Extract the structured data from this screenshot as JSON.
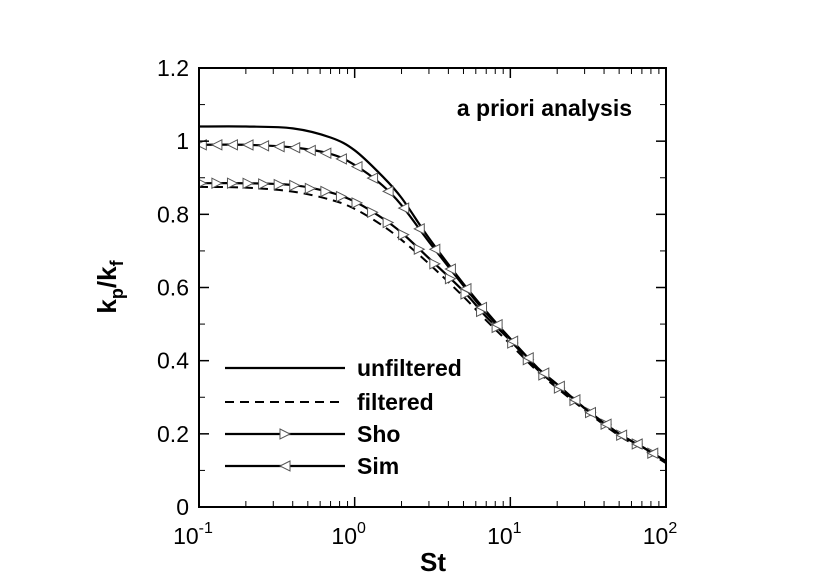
{
  "chart_data": {
    "type": "line",
    "xscale": "log",
    "xlim": [
      0.1,
      100
    ],
    "ylim": [
      0,
      1.2
    ],
    "xlabel": "St",
    "ylabel": {
      "main": "k",
      "sub1": "p",
      "sep": "/",
      "main2": "k",
      "sub2": "f"
    },
    "annotation": "a priori analysis",
    "legend_position": "bottom-left",
    "grid": false,
    "yticks": [
      {
        "value": 0,
        "label": "0"
      },
      {
        "value": 0.2,
        "label": "0.2"
      },
      {
        "value": 0.4,
        "label": "0.4"
      },
      {
        "value": 0.6,
        "label": "0.6"
      },
      {
        "value": 0.8,
        "label": "0.8"
      },
      {
        "value": 1,
        "label": "1"
      },
      {
        "value": 1.2,
        "label": "1.2"
      }
    ],
    "xticks": [
      {
        "value": 0.1,
        "base": "10",
        "exp": "-1"
      },
      {
        "value": 1,
        "base": "10",
        "exp": "0"
      },
      {
        "value": 10,
        "base": "10",
        "exp": "1"
      },
      {
        "value": 100,
        "base": "10",
        "exp": "2"
      }
    ],
    "series": [
      {
        "name": "unfiltered",
        "style": "solid",
        "marker": "none",
        "x": [
          0.1,
          0.2,
          0.4,
          0.7,
          1,
          1.5,
          2,
          3,
          5,
          7,
          10,
          15,
          20,
          30,
          50,
          70,
          100
        ],
        "y": [
          1.04,
          1.04,
          1.035,
          1.01,
          0.975,
          0.905,
          0.845,
          0.735,
          0.61,
          0.535,
          0.46,
          0.38,
          0.335,
          0.27,
          0.2,
          0.165,
          0.125
        ]
      },
      {
        "name": "filtered",
        "style": "dashed",
        "marker": "none",
        "x": [
          0.1,
          0.2,
          0.4,
          0.7,
          1,
          1.5,
          2,
          3,
          5,
          7,
          10,
          15,
          20,
          30,
          50,
          70,
          100
        ],
        "y": [
          0.875,
          0.873,
          0.862,
          0.84,
          0.815,
          0.77,
          0.73,
          0.665,
          0.575,
          0.51,
          0.445,
          0.37,
          0.325,
          0.265,
          0.195,
          0.16,
          0.12
        ]
      },
      {
        "name": "Sho",
        "style": "solid",
        "marker": "triangle-right",
        "x": [
          0.1,
          0.2,
          0.4,
          0.7,
          1,
          1.5,
          2,
          3,
          5,
          7,
          10,
          15,
          20,
          30,
          50,
          70,
          100
        ],
        "y": [
          0.885,
          0.885,
          0.88,
          0.86,
          0.835,
          0.79,
          0.75,
          0.68,
          0.59,
          0.52,
          0.455,
          0.375,
          0.33,
          0.27,
          0.2,
          0.165,
          0.125
        ]
      },
      {
        "name": "Sim",
        "style": "solid",
        "marker": "triangle-left",
        "x": [
          0.1,
          0.2,
          0.4,
          0.7,
          1,
          1.5,
          2,
          3,
          5,
          7,
          10,
          15,
          20,
          30,
          50,
          70,
          100
        ],
        "y": [
          0.99,
          0.99,
          0.983,
          0.965,
          0.935,
          0.88,
          0.825,
          0.725,
          0.605,
          0.53,
          0.46,
          0.38,
          0.335,
          0.27,
          0.2,
          0.165,
          0.125
        ]
      }
    ],
    "colors": {
      "line": "#000000",
      "marker": "#555555",
      "background": "#ffffff"
    }
  }
}
